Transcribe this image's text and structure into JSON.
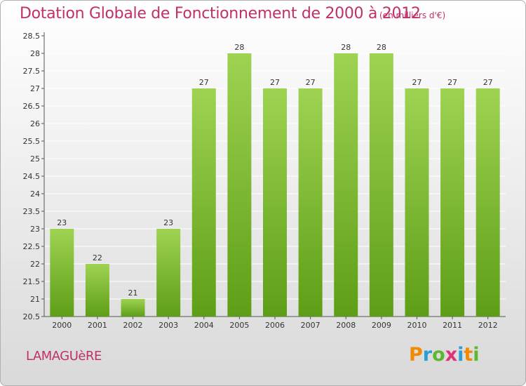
{
  "title": "Dotation Globale de Fonctionnement de 2000 à 2012",
  "unit": "(en milliers d'€)",
  "commune": "LAMAGUèRE",
  "logo": {
    "letters": [
      "P",
      "r",
      "o",
      "x",
      "i",
      "t",
      "i"
    ],
    "colors": [
      "#f08a00",
      "#2a9fd6",
      "#5cb82e",
      "#e0307a",
      "#2a9fd6",
      "#f08a00",
      "#5cb82e"
    ]
  },
  "colors": {
    "bar_top": "#9ed352",
    "bar_bottom": "#5e9e16",
    "grid": "#ffffff",
    "title": "#c0306a"
  },
  "chart_data": {
    "type": "bar",
    "categories": [
      "2000",
      "2001",
      "2002",
      "2003",
      "2004",
      "2005",
      "2006",
      "2007",
      "2008",
      "2009",
      "2010",
      "2011",
      "2012"
    ],
    "values": [
      23,
      22,
      21,
      23,
      27,
      28,
      27,
      27,
      28,
      28,
      27,
      27,
      27
    ],
    "title": "Dotation Globale de Fonctionnement de 2000 à 2012",
    "xlabel": "",
    "ylabel": "",
    "ylim": [
      20.5,
      28.5
    ],
    "yticks": [
      "20.5",
      "21",
      "21.5",
      "22",
      "22.5",
      "23",
      "23.5",
      "24",
      "24.5",
      "25",
      "25.5",
      "26",
      "26.5",
      "27",
      "27.5",
      "28",
      "28.5"
    ],
    "grid": true,
    "data_labels": true
  }
}
